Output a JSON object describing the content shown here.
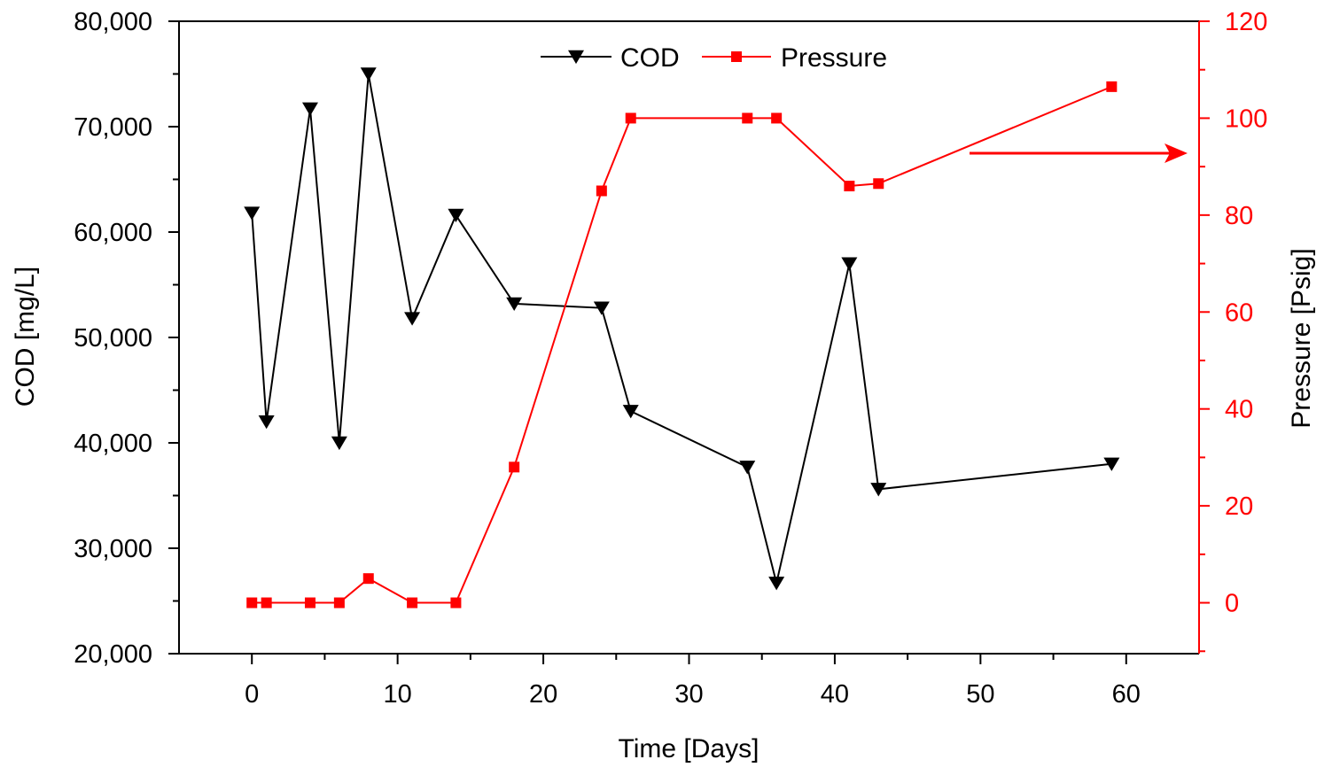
{
  "chart_data": {
    "type": "line",
    "title": "",
    "xlabel": "Time [Days]",
    "ylabel": "COD [mg/L]",
    "y2label": "Pressure [Psig]",
    "xlim": [
      -5,
      65
    ],
    "ylim": [
      20000,
      80000
    ],
    "y2lim": [
      -10.5,
      120
    ],
    "x_ticks": [
      0,
      10,
      20,
      30,
      40,
      50,
      60
    ],
    "x_tick_labels": [
      "0",
      "10",
      "20",
      "30",
      "40",
      "50",
      "60"
    ],
    "y_ticks": [
      20000,
      30000,
      40000,
      50000,
      60000,
      70000,
      80000
    ],
    "y_tick_labels": [
      "20,000",
      "30,000",
      "40,000",
      "50,000",
      "60,000",
      "70,000",
      "80,000"
    ],
    "y2_ticks": [
      0,
      20,
      40,
      60,
      80,
      100,
      120
    ],
    "y2_tick_labels": [
      "0",
      "20",
      "40",
      "60",
      "80",
      "100",
      "120"
    ],
    "legend_position": "top-center",
    "grid": false,
    "series": [
      {
        "name": "COD",
        "axis": "left",
        "color": "#000000",
        "marker": "down-triangle",
        "x": [
          0,
          1,
          4,
          6,
          8,
          11,
          14,
          18,
          24,
          26,
          34,
          36,
          41,
          43,
          59
        ],
        "values": [
          61800,
          42000,
          71700,
          40000,
          75000,
          51800,
          61600,
          53200,
          52800,
          43000,
          37700,
          26700,
          57000,
          35600,
          38000
        ]
      },
      {
        "name": "Pressure",
        "axis": "right",
        "color": "#ff0000",
        "marker": "square",
        "x": [
          0,
          1,
          4,
          6,
          8,
          11,
          14,
          18,
          24,
          26,
          34,
          36,
          41,
          43,
          59
        ],
        "values": [
          0,
          0,
          0,
          0,
          5,
          0,
          0,
          28,
          85,
          100,
          100,
          100,
          86,
          86.5,
          106.5
        ]
      }
    ],
    "annotations": [
      {
        "type": "arrow",
        "direction": "right",
        "color": "#ff0000",
        "points_to": "right axis (Pressure)"
      }
    ]
  }
}
